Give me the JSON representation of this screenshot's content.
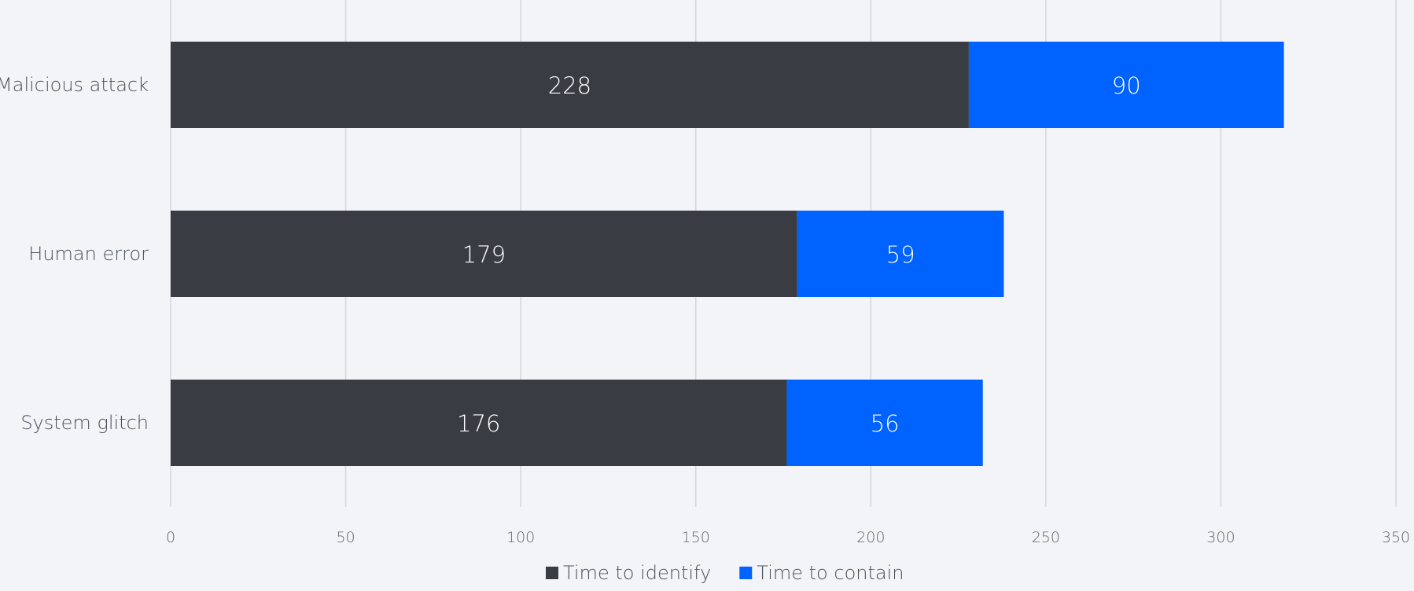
{
  "chart_data": {
    "type": "bar",
    "orientation": "horizontal",
    "stacked": true,
    "categories": [
      "Malicious attack",
      "Human error",
      "System glitch"
    ],
    "series": [
      {
        "name": "Time to identify",
        "values": [
          228,
          179,
          176
        ],
        "color": "#393d43"
      },
      {
        "name": "Time to contain",
        "values": [
          90,
          59,
          56
        ],
        "color": "#0062ff"
      }
    ],
    "xlim": [
      0,
      350
    ],
    "xticks": [
      0,
      50,
      100,
      150,
      200,
      250,
      300,
      350
    ],
    "grid": "vertical",
    "legend": "bottom-center",
    "title": "",
    "xlabel": "",
    "ylabel": ""
  },
  "colors": {
    "background": "#f2f4f8",
    "grid": "#d4d6da"
  }
}
